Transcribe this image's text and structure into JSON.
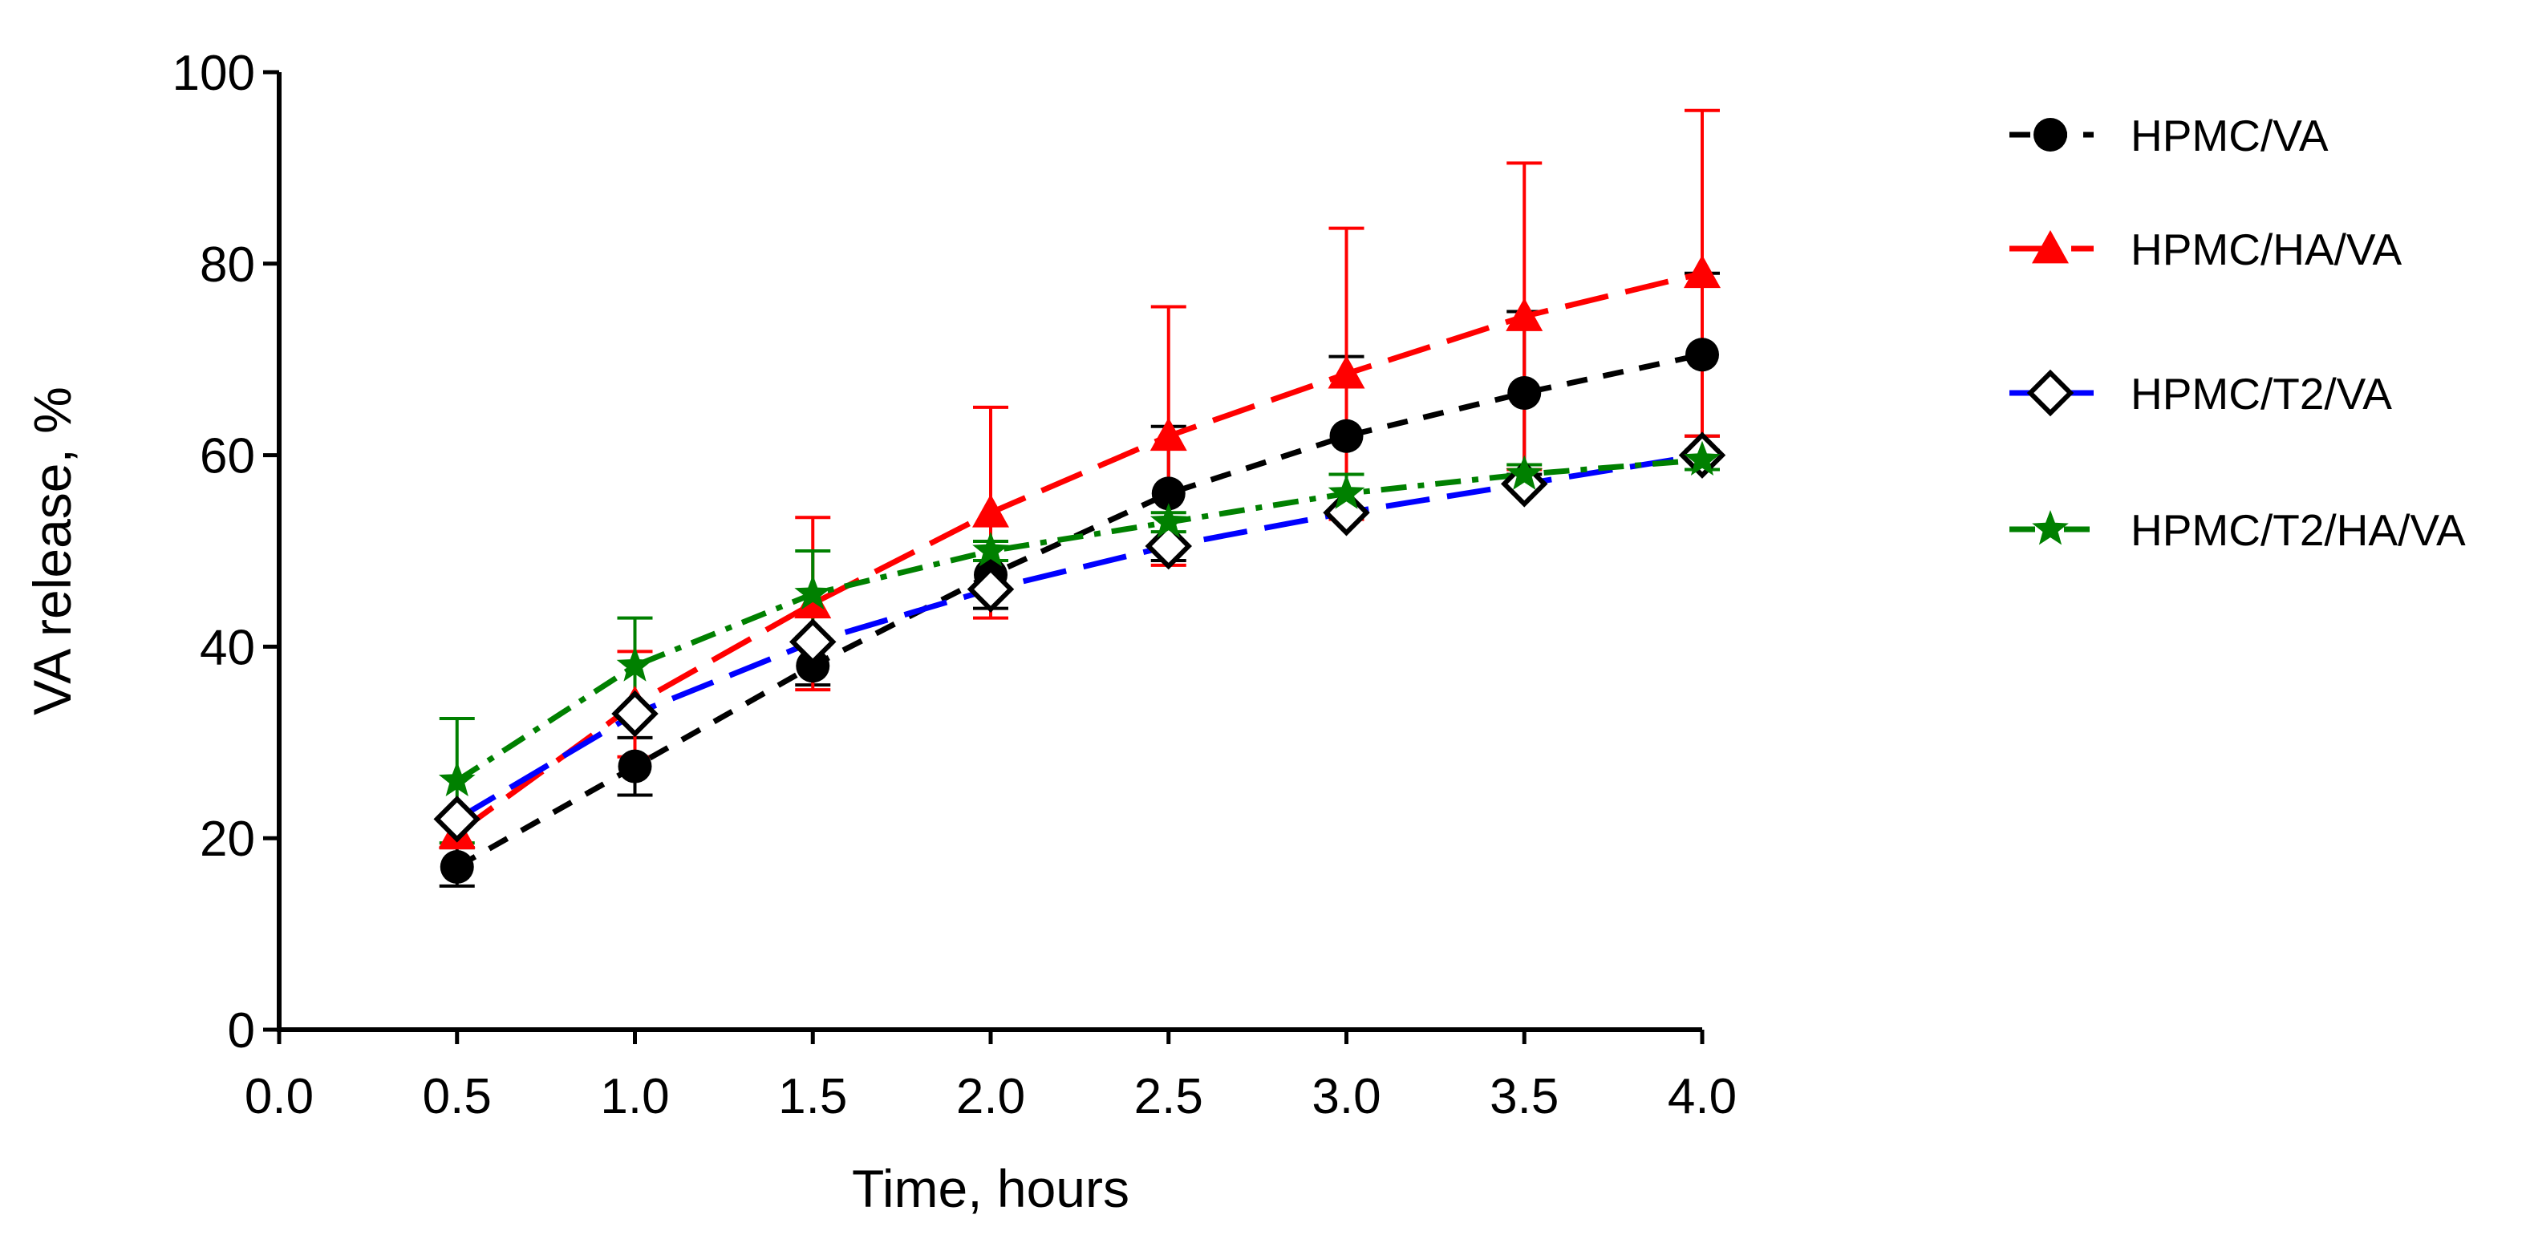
{
  "chart_data": {
    "type": "line",
    "title": "",
    "xlabel": "Time, hours",
    "ylabel": "VA release, %",
    "xlim": [
      0,
      4
    ],
    "ylim": [
      0,
      100
    ],
    "x_ticks": [
      0.0,
      0.5,
      1.0,
      1.5,
      2.0,
      2.5,
      3.0,
      3.5,
      4.0
    ],
    "x_tick_labels": [
      "0.0",
      "0.5",
      "1.0",
      "1.5",
      "2.0",
      "2.5",
      "3.0",
      "3.5",
      "4.0"
    ],
    "y_ticks": [
      0,
      20,
      40,
      60,
      80,
      100
    ],
    "y_tick_labels": [
      "0",
      "20",
      "40",
      "60",
      "80",
      "100"
    ],
    "grid": false,
    "legend_position": "right",
    "x": [
      0.5,
      1.0,
      1.5,
      2.0,
      2.5,
      3.0,
      3.5,
      4.0
    ],
    "series": [
      {
        "name": "HPMC/VA",
        "color": "#000000",
        "marker": "circle",
        "line_style": "dashed",
        "values": [
          17,
          27.5,
          38,
          47.5,
          56,
          62,
          66.5,
          70.5
        ],
        "error": [
          2,
          3,
          2,
          3.5,
          7,
          8.3,
          8.5,
          8.5
        ]
      },
      {
        "name": "HPMC/HA/VA",
        "color": "#ff0000",
        "marker": "triangle",
        "line_style": "long-dashed",
        "values": [
          20.5,
          34,
          44.5,
          54,
          62,
          68.5,
          74.5,
          79
        ],
        "error": [
          1.5,
          5.5,
          9,
          11,
          13.5,
          15.2,
          16,
          17
        ]
      },
      {
        "name": "HPMC/T2/VA",
        "color": "#0000ff",
        "marker": "open-diamond",
        "line_style": "long-dashed",
        "values": [
          22,
          33,
          40.5,
          46,
          50.5,
          54,
          57,
          60
        ],
        "error": [
          0,
          0,
          0,
          0,
          0,
          0,
          0,
          0
        ]
      },
      {
        "name": "HPMC/T2/HA/VA",
        "color": "#008000",
        "marker": "star",
        "line_style": "dash-dot",
        "values": [
          26,
          38,
          45.5,
          50,
          53,
          56,
          58,
          59.5
        ],
        "error": [
          6.5,
          5,
          4.5,
          1,
          1,
          2,
          1,
          1
        ]
      }
    ]
  }
}
